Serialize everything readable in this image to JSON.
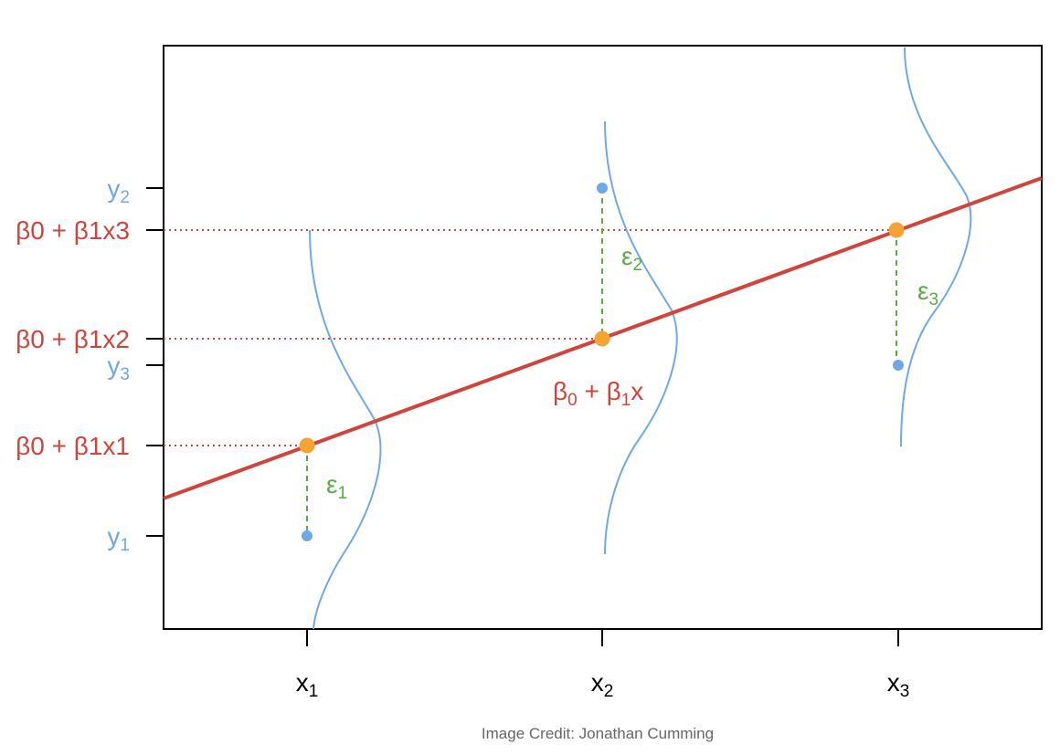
{
  "colors": {
    "regression": "#d0443c",
    "observed": "#6fa8e6",
    "error": "#5aaa46",
    "fitted": "#f5a433",
    "axis": "#000000"
  },
  "chart_data": {
    "type": "scatter",
    "x_ticks": [
      {
        "base": "x",
        "sub": "1"
      },
      {
        "base": "x",
        "sub": "2"
      },
      {
        "base": "x",
        "sub": "3"
      }
    ],
    "y_ticks": [
      {
        "label": "y",
        "sub": "1",
        "color": "observed"
      },
      {
        "label": "β0 + β1x1",
        "color": "regression"
      },
      {
        "label": "y",
        "sub": "3",
        "color": "observed"
      },
      {
        "label": "β0 + β1x2",
        "color": "regression"
      },
      {
        "label": "β0 + β1x3",
        "color": "regression"
      },
      {
        "label": "y",
        "sub": "2",
        "color": "observed"
      }
    ],
    "line_label": {
      "b0": "β",
      "s0": "0",
      "plus": " + ",
      "b1": "β",
      "s1": "1",
      "x": "x"
    },
    "errors": [
      {
        "base": "ε",
        "sub": "1"
      },
      {
        "base": "ε",
        "sub": "2"
      },
      {
        "base": "ε",
        "sub": "3"
      }
    ],
    "observations": [
      {
        "x": 1,
        "y": 1
      },
      {
        "x": 2,
        "y": 6.4
      },
      {
        "x": 3,
        "y": 4
      }
    ],
    "fitted": [
      {
        "x": 1,
        "y": 2
      },
      {
        "x": 2,
        "y": 4.3
      },
      {
        "x": 3,
        "y": 5.5
      }
    ]
  },
  "credit": "Image Credit: Jonathan Cumming"
}
